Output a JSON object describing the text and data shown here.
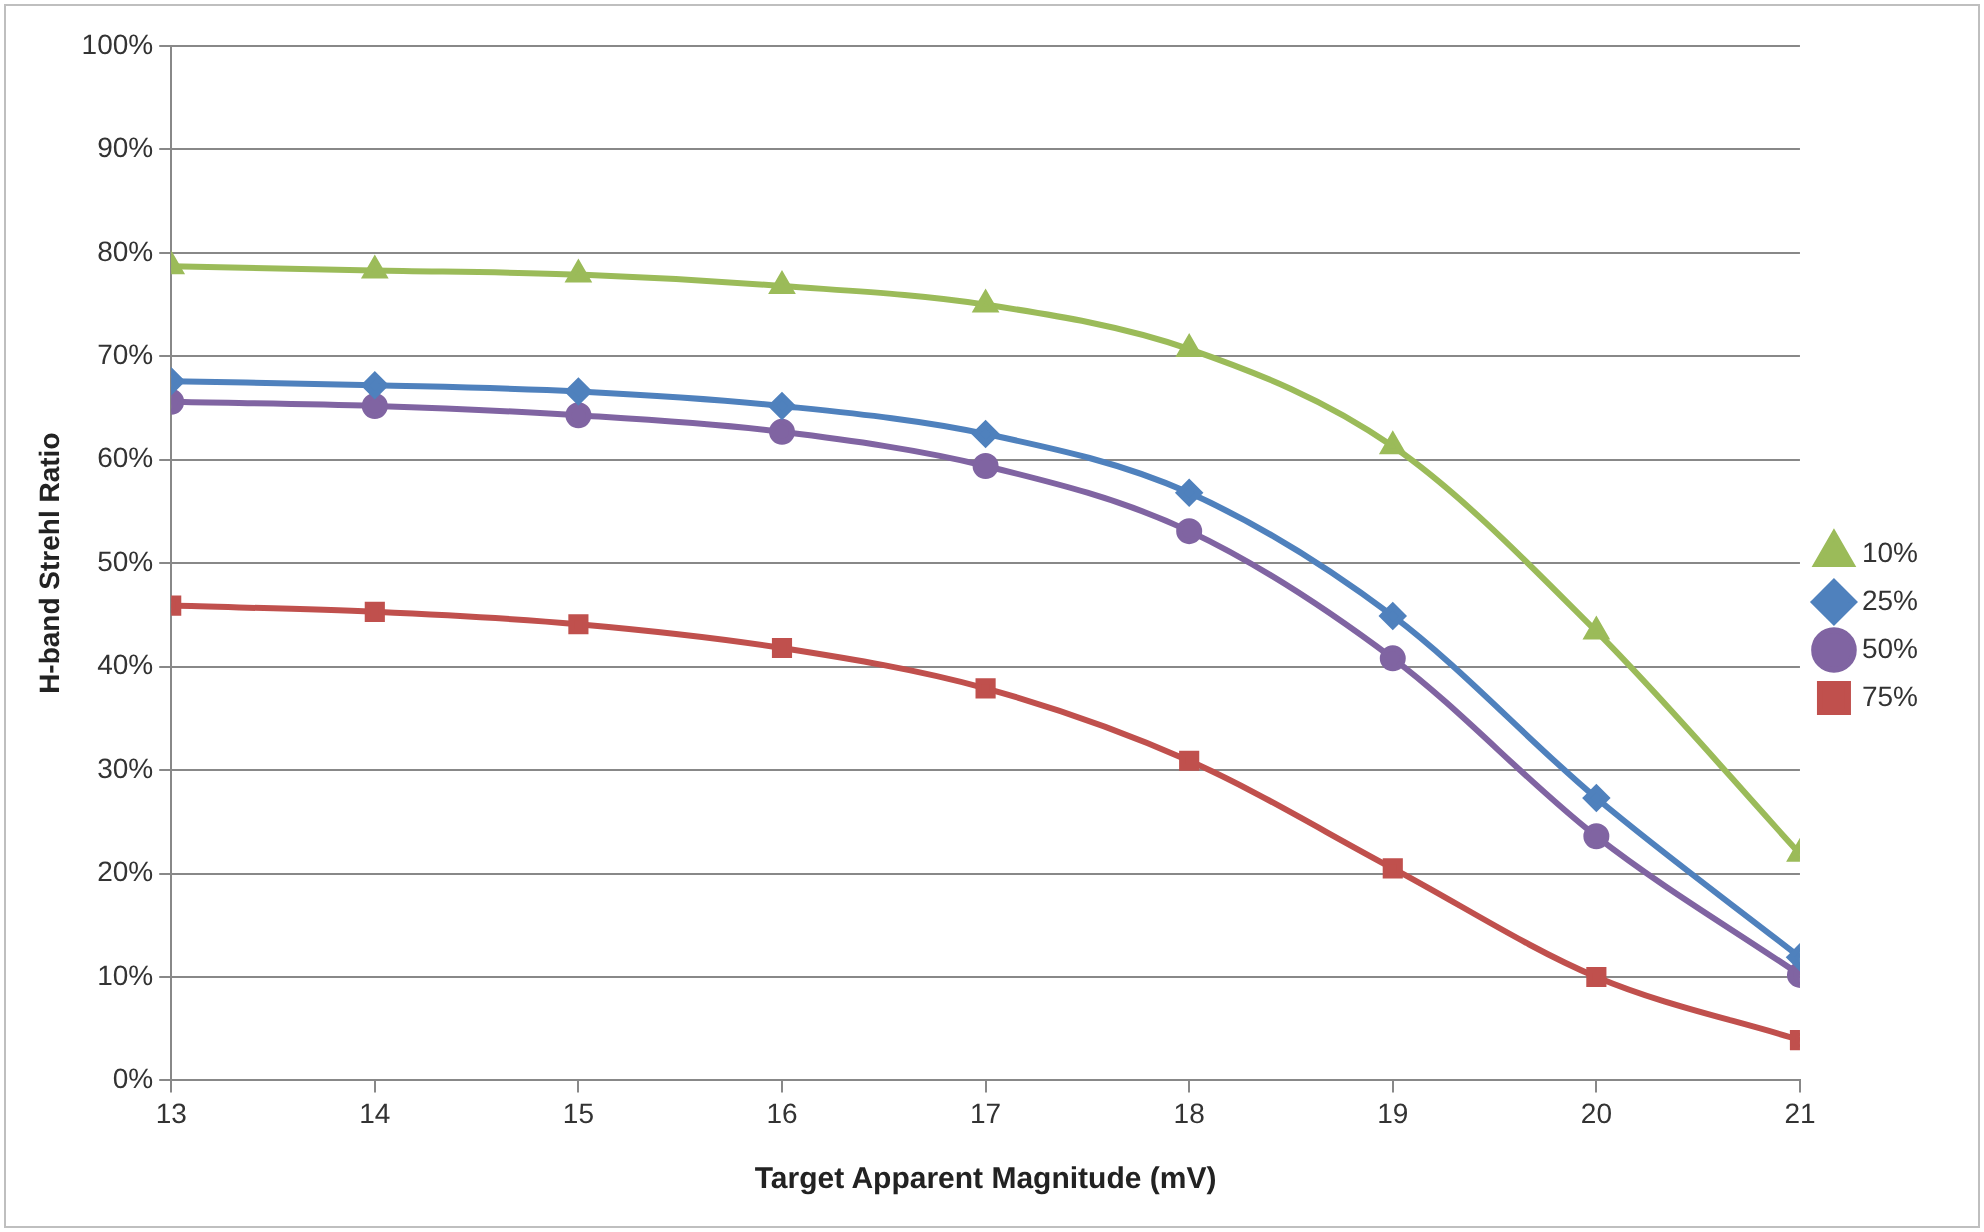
{
  "chart_data": {
    "type": "line",
    "xlabel": "Target Apparent Magnitude (mV)",
    "ylabel": "H-band Strehl Ratio",
    "x": [
      13,
      14,
      15,
      16,
      17,
      18,
      19,
      20,
      21
    ],
    "xlim": [
      13,
      21
    ],
    "xticks": [
      13,
      14,
      15,
      16,
      17,
      18,
      19,
      20,
      21
    ],
    "ylim": [
      0,
      100
    ],
    "yticks": [
      {
        "value": 0,
        "label": "0%"
      },
      {
        "value": 10,
        "label": "10%"
      },
      {
        "value": 20,
        "label": "20%"
      },
      {
        "value": 30,
        "label": "30%"
      },
      {
        "value": 40,
        "label": "40%"
      },
      {
        "value": 50,
        "label": "50%"
      },
      {
        "value": 60,
        "label": "60%"
      },
      {
        "value": 70,
        "label": "70%"
      },
      {
        "value": 80,
        "label": "80%"
      },
      {
        "value": 90,
        "label": "90%"
      },
      {
        "value": 100,
        "label": "100%"
      }
    ],
    "grid": "y",
    "legend": "right",
    "line_style": "solid",
    "series": [
      {
        "name": "10%",
        "color": "#9bbb59",
        "marker": "triangle",
        "values": [
          78.7,
          78.3,
          77.9,
          76.8,
          75.0,
          70.7,
          61.3,
          43.4,
          21.9
        ]
      },
      {
        "name": "25%",
        "color": "#4f81bd",
        "marker": "diamond",
        "values": [
          67.6,
          67.2,
          66.6,
          65.2,
          62.5,
          56.8,
          44.9,
          27.3,
          11.9
        ]
      },
      {
        "name": "50%",
        "color": "#8064a2",
        "marker": "circle",
        "values": [
          65.6,
          65.2,
          64.3,
          62.7,
          59.4,
          53.1,
          40.8,
          23.6,
          10.2
        ]
      },
      {
        "name": "75%",
        "color": "#c0504d",
        "marker": "square",
        "values": [
          45.9,
          45.3,
          44.1,
          41.8,
          37.9,
          30.9,
          20.5,
          10.0,
          3.9
        ]
      }
    ]
  }
}
